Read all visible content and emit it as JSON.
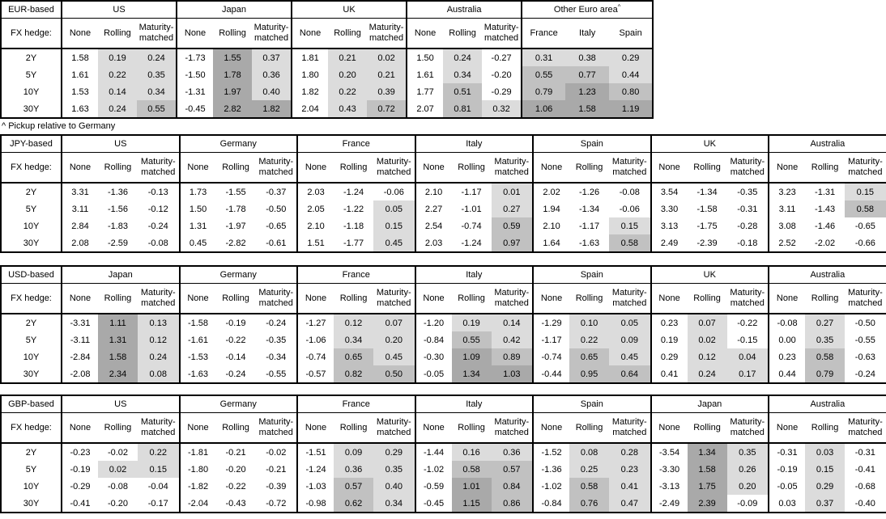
{
  "fx_hedge_label": "FX hedge:",
  "row_labels": [
    "2Y",
    "5Y",
    "10Y",
    "30Y"
  ],
  "hedge_columns": [
    "None",
    "Rolling",
    "Maturity-matched"
  ],
  "footnote": "^ Pickup relative to Germany",
  "shading_colors": {
    "low": "#dcdcdc",
    "mid": "#c1c1c1",
    "high": "#a9a9a9"
  },
  "tables": [
    {
      "id": "table-eur-based",
      "base": "EUR-based",
      "footnote_after": true,
      "groups": [
        {
          "name": "US",
          "rows": [
            [
              "1.58",
              "0.19",
              "0.24"
            ],
            [
              "1.61",
              "0.22",
              "0.35"
            ],
            [
              "1.53",
              "0.14",
              "0.34"
            ],
            [
              "1.63",
              "0.24",
              "0.55"
            ]
          ]
        },
        {
          "name": "Japan",
          "rows": [
            [
              "-1.73",
              "1.55",
              "0.37"
            ],
            [
              "-1.50",
              "1.78",
              "0.36"
            ],
            [
              "-1.31",
              "1.97",
              "0.40"
            ],
            [
              "-0.45",
              "2.82",
              "1.82"
            ]
          ]
        },
        {
          "name": "UK",
          "rows": [
            [
              "1.81",
              "0.21",
              "0.02"
            ],
            [
              "1.80",
              "0.20",
              "0.21"
            ],
            [
              "1.82",
              "0.22",
              "0.39"
            ],
            [
              "2.04",
              "0.43",
              "0.72"
            ]
          ]
        },
        {
          "name": "Australia",
          "rows": [
            [
              "1.50",
              "0.24",
              "-0.27"
            ],
            [
              "1.61",
              "0.34",
              "-0.20"
            ],
            [
              "1.77",
              "0.51",
              "-0.29"
            ],
            [
              "2.07",
              "0.81",
              "0.32"
            ]
          ]
        },
        {
          "name": "Other Euro area",
          "superscript": "^",
          "shade_all": true,
          "columns": [
            "France",
            "Italy",
            "Spain"
          ],
          "rows": [
            [
              "0.31",
              "0.38",
              "0.29"
            ],
            [
              "0.55",
              "0.77",
              "0.44"
            ],
            [
              "0.79",
              "1.23",
              "0.80"
            ],
            [
              "1.06",
              "1.58",
              "1.19"
            ]
          ]
        }
      ]
    },
    {
      "id": "table-jpy-based",
      "base": "JPY-based",
      "groups": [
        {
          "name": "US",
          "rows": [
            [
              "3.31",
              "-1.36",
              "-0.13"
            ],
            [
              "3.11",
              "-1.56",
              "-0.12"
            ],
            [
              "2.84",
              "-1.83",
              "-0.24"
            ],
            [
              "2.08",
              "-2.59",
              "-0.08"
            ]
          ]
        },
        {
          "name": "Germany",
          "rows": [
            [
              "1.73",
              "-1.55",
              "-0.37"
            ],
            [
              "1.50",
              "-1.78",
              "-0.50"
            ],
            [
              "1.31",
              "-1.97",
              "-0.65"
            ],
            [
              "0.45",
              "-2.82",
              "-0.61"
            ]
          ]
        },
        {
          "name": "France",
          "rows": [
            [
              "2.03",
              "-1.24",
              "-0.06"
            ],
            [
              "2.05",
              "-1.22",
              "0.05"
            ],
            [
              "2.10",
              "-1.18",
              "0.15"
            ],
            [
              "1.51",
              "-1.77",
              "0.45"
            ]
          ]
        },
        {
          "name": "Italy",
          "rows": [
            [
              "2.10",
              "-1.17",
              "0.01"
            ],
            [
              "2.27",
              "-1.01",
              "0.27"
            ],
            [
              "2.54",
              "-0.74",
              "0.59"
            ],
            [
              "2.03",
              "-1.24",
              "0.97"
            ]
          ]
        },
        {
          "name": "Spain",
          "rows": [
            [
              "2.02",
              "-1.26",
              "-0.08"
            ],
            [
              "1.94",
              "-1.34",
              "-0.06"
            ],
            [
              "2.10",
              "-1.17",
              "0.15"
            ],
            [
              "1.64",
              "-1.63",
              "0.58"
            ]
          ]
        },
        {
          "name": "UK",
          "rows": [
            [
              "3.54",
              "-1.34",
              "-0.35"
            ],
            [
              "3.30",
              "-1.58",
              "-0.31"
            ],
            [
              "3.13",
              "-1.75",
              "-0.28"
            ],
            [
              "2.49",
              "-2.39",
              "-0.18"
            ]
          ]
        },
        {
          "name": "Australia",
          "rows": [
            [
              "3.23",
              "-1.31",
              "0.15"
            ],
            [
              "3.11",
              "-1.43",
              "0.58"
            ],
            [
              "3.08",
              "-1.46",
              "-0.65"
            ],
            [
              "2.52",
              "-2.02",
              "-0.66"
            ]
          ]
        }
      ]
    },
    {
      "id": "table-usd-based",
      "base": "USD-based",
      "gap": "gap15",
      "groups": [
        {
          "name": "Japan",
          "rows": [
            [
              "-3.31",
              "1.11",
              "0.13"
            ],
            [
              "-3.11",
              "1.31",
              "0.12"
            ],
            [
              "-2.84",
              "1.58",
              "0.24"
            ],
            [
              "-2.08",
              "2.34",
              "0.08"
            ]
          ]
        },
        {
          "name": "Germany",
          "rows": [
            [
              "-1.58",
              "-0.19",
              "-0.24"
            ],
            [
              "-1.61",
              "-0.22",
              "-0.35"
            ],
            [
              "-1.53",
              "-0.14",
              "-0.34"
            ],
            [
              "-1.63",
              "-0.24",
              "-0.55"
            ]
          ]
        },
        {
          "name": "France",
          "rows": [
            [
              "-1.27",
              "0.12",
              "0.07"
            ],
            [
              "-1.06",
              "0.34",
              "0.20"
            ],
            [
              "-0.74",
              "0.65",
              "0.45"
            ],
            [
              "-0.57",
              "0.82",
              "0.50"
            ]
          ]
        },
        {
          "name": "Italy",
          "rows": [
            [
              "-1.20",
              "0.19",
              "0.14"
            ],
            [
              "-0.84",
              "0.55",
              "0.42"
            ],
            [
              "-0.30",
              "1.09",
              "0.89"
            ],
            [
              "-0.05",
              "1.34",
              "1.03"
            ]
          ]
        },
        {
          "name": "Spain",
          "rows": [
            [
              "-1.29",
              "0.10",
              "0.05"
            ],
            [
              "-1.17",
              "0.22",
              "0.09"
            ],
            [
              "-0.74",
              "0.65",
              "0.45"
            ],
            [
              "-0.44",
              "0.95",
              "0.64"
            ]
          ]
        },
        {
          "name": "UK",
          "rows": [
            [
              "0.23",
              "0.07",
              "-0.22"
            ],
            [
              "0.19",
              "0.02",
              "-0.15"
            ],
            [
              "0.29",
              "0.12",
              "0.04"
            ],
            [
              "0.41",
              "0.24",
              "0.17"
            ]
          ]
        },
        {
          "name": "Australia",
          "rows": [
            [
              "-0.08",
              "0.27",
              "-0.50"
            ],
            [
              "0.00",
              "0.35",
              "-0.55"
            ],
            [
              "0.23",
              "0.58",
              "-0.63"
            ],
            [
              "0.44",
              "0.79",
              "-0.24"
            ]
          ]
        }
      ]
    },
    {
      "id": "table-gbp-based",
      "base": "GBP-based",
      "gap": "gap13",
      "groups": [
        {
          "name": "US",
          "rows": [
            [
              "-0.23",
              "-0.02",
              "0.22"
            ],
            [
              "-0.19",
              "0.02",
              "0.15"
            ],
            [
              "-0.29",
              "-0.08",
              "-0.04"
            ],
            [
              "-0.41",
              "-0.20",
              "-0.17"
            ]
          ]
        },
        {
          "name": "Germany",
          "rows": [
            [
              "-1.81",
              "-0.21",
              "-0.02"
            ],
            [
              "-1.80",
              "-0.20",
              "-0.21"
            ],
            [
              "-1.82",
              "-0.22",
              "-0.39"
            ],
            [
              "-2.04",
              "-0.43",
              "-0.72"
            ]
          ]
        },
        {
          "name": "France",
          "rows": [
            [
              "-1.51",
              "0.09",
              "0.29"
            ],
            [
              "-1.24",
              "0.36",
              "0.35"
            ],
            [
              "-1.03",
              "0.57",
              "0.40"
            ],
            [
              "-0.98",
              "0.62",
              "0.34"
            ]
          ]
        },
        {
          "name": "Italy",
          "rows": [
            [
              "-1.44",
              "0.16",
              "0.36"
            ],
            [
              "-1.02",
              "0.58",
              "0.57"
            ],
            [
              "-0.59",
              "1.01",
              "0.84"
            ],
            [
              "-0.45",
              "1.15",
              "0.86"
            ]
          ]
        },
        {
          "name": "Spain",
          "rows": [
            [
              "-1.52",
              "0.08",
              "0.28"
            ],
            [
              "-1.36",
              "0.25",
              "0.23"
            ],
            [
              "-1.02",
              "0.58",
              "0.41"
            ],
            [
              "-0.84",
              "0.76",
              "0.47"
            ]
          ]
        },
        {
          "name": "Japan",
          "rows": [
            [
              "-3.54",
              "1.34",
              "0.35"
            ],
            [
              "-3.30",
              "1.58",
              "0.26"
            ],
            [
              "-3.13",
              "1.75",
              "0.20"
            ],
            [
              "-2.49",
              "2.39",
              "-0.09"
            ]
          ]
        },
        {
          "name": "Australia",
          "rows": [
            [
              "-0.31",
              "0.03",
              "-0.31"
            ],
            [
              "-0.19",
              "0.15",
              "-0.41"
            ],
            [
              "-0.05",
              "0.29",
              "-0.68"
            ],
            [
              "0.03",
              "0.37",
              "-0.40"
            ]
          ]
        }
      ]
    }
  ]
}
